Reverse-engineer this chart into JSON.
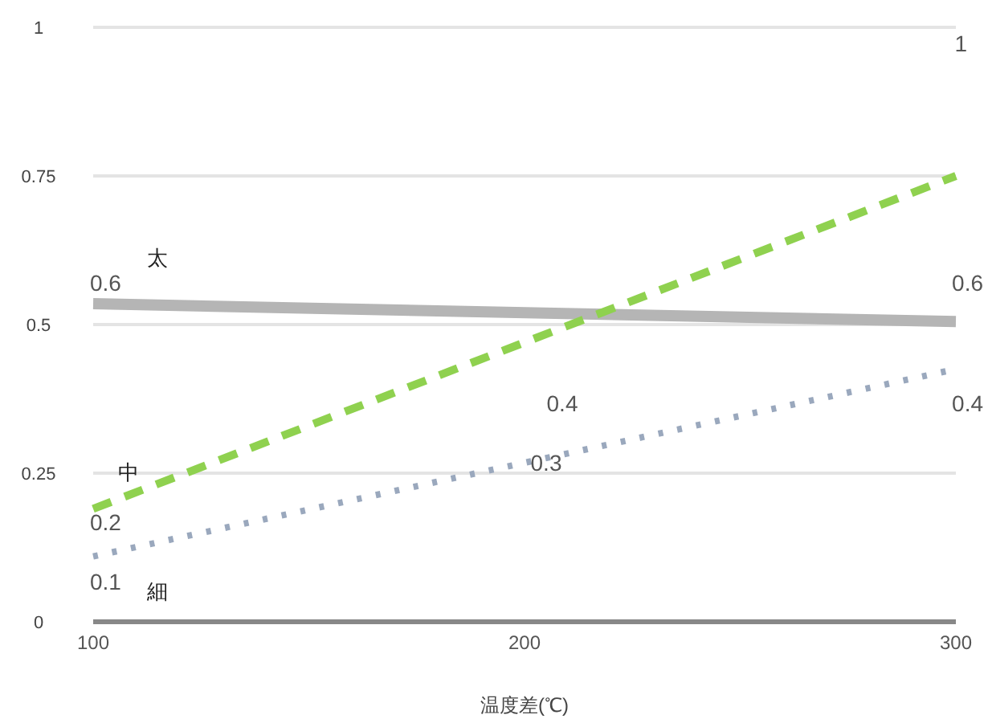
{
  "chart_data": {
    "type": "line",
    "xlabel": "温度差(℃)",
    "x": [
      100,
      300
    ],
    "xlim": [
      100,
      300
    ],
    "xticks": [
      100,
      200,
      300
    ],
    "ylim": [
      0,
      1
    ],
    "yticks": [
      0,
      0.25,
      0.5,
      0.75,
      1
    ],
    "grid": "y",
    "legend": false,
    "series": [
      {
        "name": "太",
        "color": "#b5b5b5",
        "values": [
          0.535,
          0.505
        ],
        "line_style": "solid"
      },
      {
        "name": "中",
        "color": "#8fd14f",
        "values": [
          0.19,
          0.75
        ],
        "line_style": "dashed"
      },
      {
        "name": "細",
        "color": "#9aa8bd",
        "values": [
          0.11,
          0.425
        ],
        "line_style": "dotted"
      }
    ],
    "annotations": [
      "0.6",
      "0.6",
      "0.2",
      "0.4",
      "0.1",
      "0.3",
      "0.4",
      "1"
    ]
  }
}
